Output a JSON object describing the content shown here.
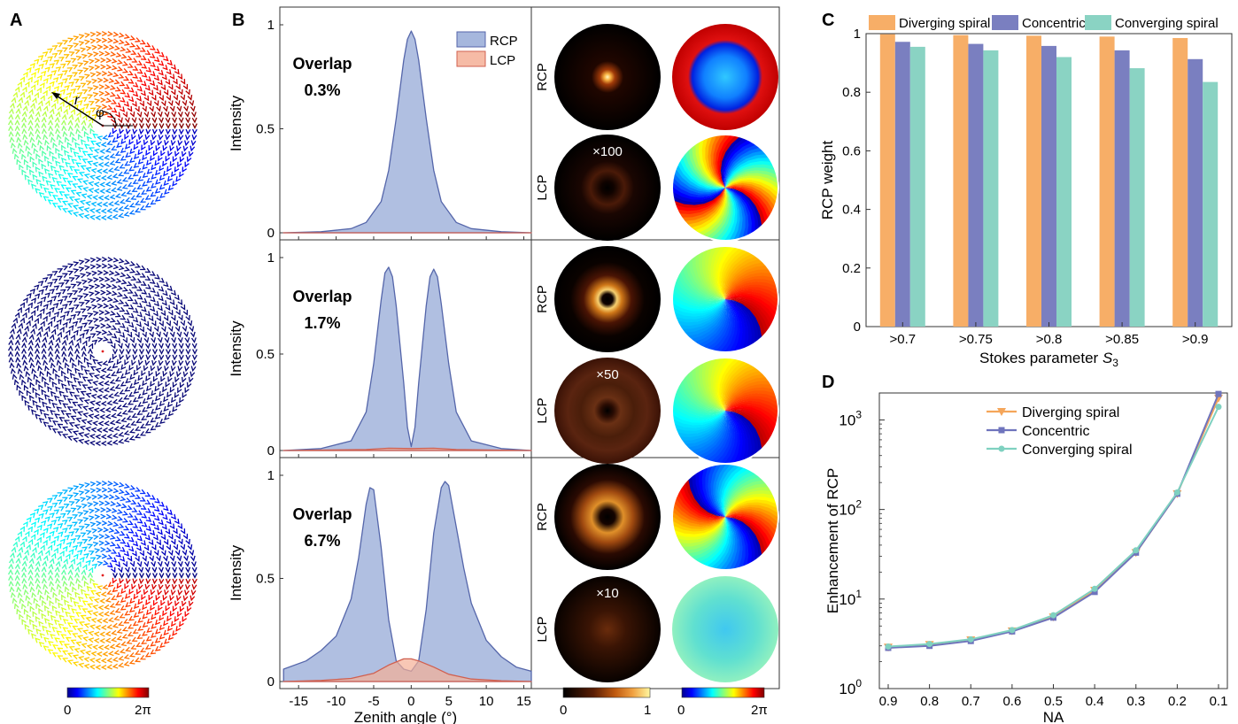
{
  "panel_labels": {
    "a": "A",
    "b": "B",
    "c": "C",
    "d": "D"
  },
  "panel_a": {
    "r_label": "r",
    "phi_label": "φ",
    "colorbar": {
      "min": "0",
      "max": "2π"
    }
  },
  "panel_b": {
    "ylabel": "Intensity",
    "xlabel": "Zenith angle (°)",
    "ytick_labels": [
      "0",
      "0.5",
      "1"
    ],
    "xtick_values": [
      -15,
      -10,
      -5,
      0,
      5,
      10,
      15
    ],
    "xtick_labels": [
      "-15",
      "-10",
      "-5",
      "0",
      "5",
      "10",
      "15"
    ],
    "legend": [
      "RCP",
      "LCP"
    ],
    "overlap_word": "Overlap",
    "rows": [
      {
        "overlap": "0.3%",
        "magnification": "×100"
      },
      {
        "overlap": "1.7%",
        "magnification": "×50"
      },
      {
        "overlap": "6.7%",
        "magnification": "×10"
      }
    ],
    "side_labels": [
      "RCP",
      "LCP"
    ],
    "intensity_colorbar": {
      "min": "0",
      "max": "1"
    },
    "phase_colorbar": {
      "min": "0",
      "max": "2π"
    }
  },
  "chart_data": [
    {
      "type": "line",
      "panel": "B",
      "xlabel": "Zenith angle (°)",
      "ylabel": "Intensity",
      "xlim": [
        -17.5,
        16
      ],
      "ylim": [
        0,
        1
      ],
      "legend": [
        "RCP",
        "LCP"
      ],
      "rows": [
        {
          "overlap": "0.3%",
          "RCP": {
            "x": [
              -17,
              -12,
              -8,
              -6,
              -4,
              -3,
              -2,
              -1,
              -0.5,
              0,
              0.5,
              1,
              2,
              3,
              4,
              6,
              8,
              12,
              16
            ],
            "y": [
              0.0,
              0.005,
              0.02,
              0.05,
              0.15,
              0.3,
              0.55,
              0.83,
              0.93,
              0.97,
              0.93,
              0.83,
              0.55,
              0.3,
              0.15,
              0.05,
              0.02,
              0.005,
              0.0
            ]
          },
          "LCP": {
            "x": [
              -17,
              0,
              16
            ],
            "y": [
              0,
              0,
              0
            ]
          }
        },
        {
          "overlap": "1.7%",
          "RCP": {
            "x": [
              -17,
              -12,
              -8,
              -6,
              -5,
              -4,
              -3.5,
              -3,
              -2.5,
              -2,
              -1,
              -0.5,
              0,
              0.5,
              1,
              2,
              2.5,
              3,
              3.5,
              4,
              5,
              6,
              8,
              12,
              16
            ],
            "y": [
              0.0,
              0.01,
              0.05,
              0.2,
              0.45,
              0.78,
              0.92,
              0.95,
              0.9,
              0.75,
              0.35,
              0.12,
              0.02,
              0.12,
              0.35,
              0.75,
              0.9,
              0.94,
              0.9,
              0.76,
              0.45,
              0.2,
              0.05,
              0.01,
              0.0
            ]
          },
          "LCP": {
            "x": [
              -17,
              -6,
              -3,
              0,
              3,
              6,
              16
            ],
            "y": [
              0,
              0.005,
              0.012,
              0.01,
              0.012,
              0.005,
              0
            ]
          }
        },
        {
          "overlap": "6.7%",
          "RCP": {
            "x": [
              -17,
              -14,
              -12,
              -10,
              -8,
              -7,
              -6,
              -5.5,
              -5,
              -4,
              -3,
              -2,
              -1,
              0,
              1,
              2,
              3,
              4,
              4.5,
              5,
              6,
              7,
              8,
              10,
              12,
              14,
              16
            ],
            "y": [
              0.06,
              0.1,
              0.15,
              0.22,
              0.4,
              0.6,
              0.86,
              0.94,
              0.93,
              0.65,
              0.3,
              0.1,
              0.06,
              0.05,
              0.1,
              0.35,
              0.72,
              0.94,
              0.97,
              0.95,
              0.75,
              0.55,
              0.38,
              0.2,
              0.12,
              0.07,
              0.05
            ]
          },
          "LCP": {
            "x": [
              -17,
              -12,
              -8,
              -5,
              -3,
              -1,
              0,
              1,
              3,
              5,
              8,
              12,
              16
            ],
            "y": [
              0,
              0.005,
              0.015,
              0.04,
              0.08,
              0.11,
              0.11,
              0.1,
              0.07,
              0.035,
              0.012,
              0.004,
              0
            ]
          }
        }
      ]
    },
    {
      "type": "bar",
      "panel": "C",
      "xlabel": "Stokes parameter S3",
      "xlabel_main": "Stokes parameter ",
      "xlabel_sym": "S",
      "xlabel_sub": "3",
      "ylabel": "RCP weight",
      "ylim": [
        0,
        1
      ],
      "ytick_labels": [
        "0",
        "0.2",
        "0.4",
        "0.6",
        "0.8",
        "1"
      ],
      "categories": [
        ">0.7",
        ">0.75",
        ">0.8",
        ">0.85",
        ">0.9"
      ],
      "series": [
        {
          "name": "Diverging spiral",
          "color": "#f7ae67",
          "values": [
            0.998,
            0.995,
            0.993,
            0.99,
            0.985
          ]
        },
        {
          "name": "Concentric",
          "color": "#7a7fc0",
          "values": [
            0.972,
            0.965,
            0.958,
            0.943,
            0.913
          ]
        },
        {
          "name": "Converging spiral",
          "color": "#8ad3c3",
          "values": [
            0.955,
            0.943,
            0.92,
            0.882,
            0.835
          ]
        }
      ],
      "legend_placement": "top"
    },
    {
      "type": "line",
      "panel": "D",
      "xlabel": "NA",
      "ylabel": "Enhancement of RCP",
      "yscale": "log",
      "ylim": [
        1,
        2000
      ],
      "ytick_labels": [
        {
          "base": "10",
          "exp": "0",
          "v": 1
        },
        {
          "base": "10",
          "exp": "1",
          "v": 10
        },
        {
          "base": "10",
          "exp": "2",
          "v": 100
        },
        {
          "base": "10",
          "exp": "3",
          "v": 1000
        }
      ],
      "categories": [
        "0.9",
        "0.8",
        "0.7",
        "0.6",
        "0.5",
        "0.4",
        "0.3",
        "0.2",
        "0.1"
      ],
      "series": [
        {
          "name": "Diverging spiral",
          "color": "#f5a65a",
          "marker": "triangle-down",
          "values": [
            2.9,
            3.1,
            3.5,
            4.4,
            6.3,
            12.5,
            33,
            150,
            1750
          ]
        },
        {
          "name": "Concentric",
          "color": "#6f74bd",
          "marker": "square",
          "values": [
            2.85,
            3.0,
            3.4,
            4.35,
            6.2,
            12.0,
            33,
            150,
            1950
          ]
        },
        {
          "name": "Converging spiral",
          "color": "#7fd1c0",
          "marker": "circle",
          "values": [
            2.95,
            3.15,
            3.55,
            4.5,
            6.6,
            13,
            35,
            155,
            1400
          ]
        }
      ],
      "legend_placement": "top-left"
    }
  ]
}
